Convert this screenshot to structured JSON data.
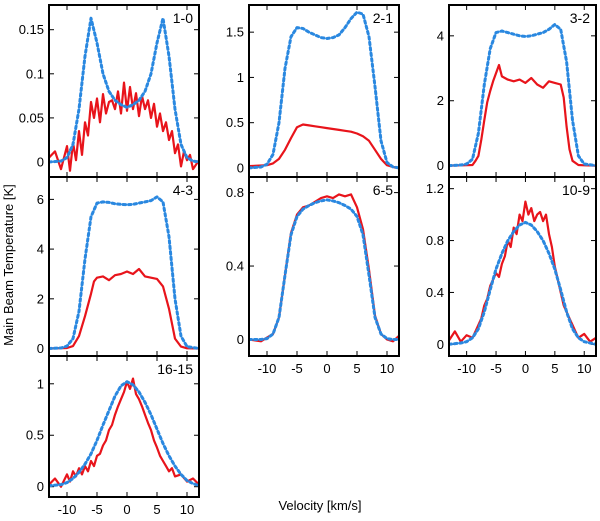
{
  "chart_data": {
    "type": "line",
    "xlabel": "Velocity [km/s]",
    "ylabel": "Main Beam Temperature [K]",
    "xlim": [
      -13,
      12
    ],
    "xticks": [
      -10,
      -5,
      0,
      5,
      10
    ],
    "series_colors": {
      "observed": "#e8141b",
      "model": "#2a88e0"
    },
    "panels": [
      {
        "transition": "1-0",
        "ylim": [
          -0.017,
          0.178
        ],
        "yticks": [
          0,
          0.05,
          0.1,
          0.15
        ],
        "ytick_labels": [
          "0",
          "0.05",
          "0.1",
          "0.15"
        ],
        "observed": {
          "x": [
            -13,
            -12,
            -11,
            -10,
            -9.5,
            -9,
            -8.5,
            -8,
            -7.5,
            -7,
            -6.5,
            -6,
            -5.5,
            -5,
            -4.5,
            -4,
            -3.5,
            -3,
            -2.5,
            -2,
            -1.5,
            -1,
            -0.5,
            0,
            0.5,
            1,
            1.5,
            2,
            2.5,
            3,
            3.5,
            4,
            4.5,
            5,
            5.5,
            6,
            6.5,
            7,
            7.5,
            8,
            8.5,
            9,
            9.5,
            10,
            10.5,
            11,
            12
          ],
          "y": [
            0.005,
            0.012,
            -0.008,
            0.018,
            -0.01,
            0.022,
            0.002,
            0.035,
            0.008,
            0.045,
            0.03,
            0.068,
            0.05,
            0.072,
            0.045,
            0.077,
            0.055,
            0.068,
            0.07,
            0.06,
            0.08,
            0.055,
            0.09,
            0.058,
            0.085,
            0.06,
            0.078,
            0.052,
            0.075,
            0.06,
            0.07,
            0.05,
            0.066,
            0.04,
            0.055,
            0.035,
            0.045,
            0.025,
            0.035,
            0.01,
            0.02,
            -0.005,
            0.012,
            0.002,
            0.008,
            -0.008,
            0.002
          ]
        },
        "model": {
          "x": [
            -13,
            -11,
            -10,
            -9,
            -8,
            -7,
            -6,
            -5,
            -4,
            -3,
            -2,
            -1,
            0,
            1,
            2,
            3,
            4,
            5,
            6,
            7,
            8,
            9,
            10,
            11,
            12
          ],
          "y": [
            0,
            0.001,
            0.005,
            0.02,
            0.06,
            0.12,
            0.163,
            0.135,
            0.1,
            0.08,
            0.07,
            0.065,
            0.062,
            0.065,
            0.07,
            0.08,
            0.1,
            0.135,
            0.163,
            0.12,
            0.06,
            0.02,
            0.005,
            0.001,
            0
          ]
        }
      },
      {
        "transition": "2-1",
        "ylim": [
          -0.1,
          1.8
        ],
        "yticks": [
          0,
          0.5,
          1,
          1.5
        ],
        "ytick_labels": [
          "0",
          "0.5",
          "1",
          "1.5"
        ],
        "observed": {
          "x": [
            -13,
            -10,
            -9,
            -8,
            -7,
            -6,
            -5,
            -4,
            -3,
            -2,
            -1,
            0,
            1,
            2,
            3,
            4,
            5,
            6,
            7,
            8,
            9,
            10,
            11,
            12
          ],
          "y": [
            0.02,
            0.03,
            0.05,
            0.1,
            0.2,
            0.33,
            0.45,
            0.48,
            0.47,
            0.46,
            0.45,
            0.44,
            0.43,
            0.42,
            0.41,
            0.4,
            0.38,
            0.35,
            0.3,
            0.2,
            0.1,
            0.03,
            0.01,
            0
          ]
        },
        "model": {
          "x": [
            -13,
            -11,
            -10,
            -9,
            -8,
            -7,
            -6,
            -5,
            -4,
            -3,
            -2,
            -1,
            0,
            1,
            2,
            3,
            4,
            5,
            6,
            7,
            8,
            9,
            10,
            11,
            12
          ],
          "y": [
            0,
            0.01,
            0.04,
            0.15,
            0.5,
            1.1,
            1.45,
            1.55,
            1.54,
            1.5,
            1.47,
            1.44,
            1.43,
            1.44,
            1.47,
            1.55,
            1.65,
            1.72,
            1.7,
            1.45,
            0.9,
            0.3,
            0.06,
            0.01,
            0
          ]
        }
      },
      {
        "transition": "3-2",
        "ylim": [
          -0.35,
          4.95
        ],
        "yticks": [
          0,
          2,
          4
        ],
        "ytick_labels": [
          "0",
          "2",
          "4"
        ],
        "observed": {
          "x": [
            -13,
            -9,
            -8.5,
            -8,
            -7.5,
            -7,
            -6.5,
            -6,
            -5.5,
            -5,
            -4.5,
            -4,
            -3,
            -2,
            -1,
            0,
            1,
            2,
            3,
            4,
            5,
            6,
            6.5,
            7,
            7.5,
            8,
            9,
            10,
            12
          ],
          "y": [
            0,
            0.02,
            0.15,
            0.3,
            0.8,
            1.4,
            1.95,
            2.3,
            2.6,
            2.85,
            3.1,
            2.75,
            2.65,
            2.6,
            2.65,
            2.55,
            2.7,
            2.5,
            2.4,
            2.6,
            2.55,
            2.5,
            2.1,
            1.2,
            0.5,
            0.15,
            0.02,
            0.01,
            0
          ]
        },
        "model": {
          "x": [
            -13,
            -11,
            -10,
            -9,
            -8,
            -7,
            -6,
            -5,
            -4,
            -3,
            -2,
            -1,
            0,
            1,
            2,
            3,
            4,
            5,
            6,
            7,
            8,
            9,
            10,
            12
          ],
          "y": [
            0,
            0.02,
            0.05,
            0.2,
            1.0,
            2.5,
            3.6,
            4.1,
            4.15,
            4.1,
            4.05,
            4.0,
            3.98,
            4.0,
            4.05,
            4.1,
            4.2,
            4.35,
            4.2,
            3.2,
            1.4,
            0.3,
            0.05,
            0
          ]
        }
      },
      {
        "transition": "4-3",
        "ylim": [
          -0.3,
          6.9
        ],
        "yticks": [
          0,
          2,
          4,
          6
        ],
        "ytick_labels": [
          "0",
          "2",
          "4",
          "6"
        ],
        "observed": {
          "x": [
            -13,
            -10,
            -9,
            -8,
            -7,
            -6,
            -5.5,
            -5,
            -4,
            -3,
            -2,
            -1,
            0,
            1,
            2,
            3,
            4,
            5,
            6,
            7,
            7.5,
            8,
            9,
            10,
            12
          ],
          "y": [
            0,
            0.02,
            0.1,
            0.5,
            1.3,
            2.2,
            2.7,
            2.85,
            2.9,
            2.75,
            2.95,
            3.0,
            3.1,
            3.0,
            3.2,
            2.9,
            2.85,
            2.8,
            2.5,
            1.6,
            1.0,
            0.4,
            0.08,
            0.01,
            0
          ]
        },
        "model": {
          "x": [
            -13,
            -11,
            -10,
            -9,
            -8,
            -7,
            -6,
            -5,
            -4,
            -3,
            -2,
            -1,
            0,
            1,
            2,
            3,
            4,
            5,
            6,
            7,
            8,
            9,
            10,
            12
          ],
          "y": [
            0,
            0.02,
            0.1,
            0.4,
            1.5,
            3.6,
            5.3,
            5.85,
            5.9,
            5.88,
            5.82,
            5.8,
            5.78,
            5.8,
            5.85,
            5.9,
            5.95,
            6.1,
            5.9,
            4.5,
            2.0,
            0.5,
            0.08,
            0
          ]
        }
      },
      {
        "transition": "6-5",
        "ylim": [
          -0.09,
          0.885
        ],
        "yticks": [
          0,
          0.4,
          0.8
        ],
        "ytick_labels": [
          "0",
          "0.4",
          "0.8"
        ],
        "observed": {
          "x": [
            -13,
            -11,
            -10,
            -9,
            -8,
            -7,
            -6,
            -5,
            -4,
            -3,
            -2,
            -1,
            0,
            1,
            2,
            3,
            4,
            5,
            6,
            7,
            8,
            9,
            10,
            11,
            12
          ],
          "y": [
            0,
            -0.01,
            0.01,
            0.03,
            0.12,
            0.35,
            0.58,
            0.68,
            0.72,
            0.73,
            0.75,
            0.77,
            0.78,
            0.77,
            0.79,
            0.78,
            0.79,
            0.72,
            0.6,
            0.38,
            0.13,
            0.03,
            0.0,
            -0.01,
            0.02
          ]
        },
        "model": {
          "x": [
            -13,
            -11,
            -10,
            -9,
            -8,
            -7,
            -6,
            -5,
            -4,
            -3,
            -2,
            -1,
            0,
            1,
            2,
            3,
            4,
            5,
            6,
            7,
            8,
            9,
            10,
            11,
            12
          ],
          "y": [
            0,
            0.0,
            0.005,
            0.03,
            0.12,
            0.35,
            0.57,
            0.67,
            0.71,
            0.73,
            0.745,
            0.755,
            0.76,
            0.755,
            0.745,
            0.73,
            0.71,
            0.67,
            0.57,
            0.35,
            0.12,
            0.03,
            0.005,
            0.0,
            0
          ]
        }
      },
      {
        "transition": "10-9",
        "ylim": [
          -0.09,
          1.29
        ],
        "yticks": [
          0,
          0.4,
          0.8,
          1.2
        ],
        "ytick_labels": [
          "0",
          "0.4",
          "0.8",
          "1.2"
        ],
        "observed": {
          "x": [
            -13,
            -12,
            -11,
            -10,
            -9,
            -8.5,
            -8,
            -7.5,
            -7,
            -6.5,
            -6,
            -5.5,
            -5,
            -4.5,
            -4,
            -3.5,
            -3,
            -2.5,
            -2,
            -1.5,
            -1,
            -0.5,
            0,
            0.5,
            1,
            1.5,
            2,
            2.5,
            3,
            3.5,
            4,
            4.5,
            5,
            5.5,
            6,
            6.5,
            7,
            7.5,
            8,
            8.5,
            9,
            10,
            11,
            12
          ],
          "y": [
            0.03,
            0.1,
            0.02,
            0.07,
            0.05,
            0.1,
            0.15,
            0.2,
            0.3,
            0.35,
            0.45,
            0.5,
            0.55,
            0.52,
            0.62,
            0.68,
            0.8,
            0.75,
            0.9,
            0.85,
            1.0,
            0.95,
            1.1,
            1.0,
            1.05,
            0.95,
            1.0,
            1.02,
            0.95,
            1.0,
            0.85,
            0.75,
            0.6,
            0.5,
            0.4,
            0.3,
            0.25,
            0.2,
            0.15,
            0.1,
            0.05,
            0.08,
            0.02,
            0.05
          ]
        },
        "model": {
          "x": [
            -13,
            -11,
            -10,
            -9,
            -8,
            -7,
            -6,
            -5,
            -4,
            -3,
            -2,
            -1,
            0,
            1,
            2,
            3,
            4,
            5,
            6,
            7,
            8,
            9,
            10,
            11,
            12
          ],
          "y": [
            0,
            0.01,
            0.02,
            0.05,
            0.12,
            0.25,
            0.42,
            0.58,
            0.7,
            0.8,
            0.87,
            0.92,
            0.94,
            0.92,
            0.87,
            0.8,
            0.7,
            0.58,
            0.42,
            0.25,
            0.12,
            0.05,
            0.02,
            0.01,
            0
          ]
        }
      },
      {
        "transition": "16-15",
        "ylim": [
          -0.1,
          1.27
        ],
        "yticks": [
          0,
          0.5,
          1
        ],
        "ytick_labels": [
          "0",
          "0.5",
          "1"
        ],
        "observed": {
          "x": [
            -13,
            -12,
            -11,
            -10,
            -9.5,
            -9,
            -8.5,
            -8,
            -7.5,
            -7,
            -6.5,
            -6,
            -5.5,
            -5,
            -4.5,
            -4,
            -3.5,
            -3,
            -2.5,
            -2,
            -1.5,
            -1,
            -0.5,
            0,
            0.5,
            1,
            1.5,
            2,
            2.5,
            3,
            3.5,
            4,
            4.5,
            5,
            5.5,
            6,
            6.5,
            7,
            7.5,
            8,
            9,
            10,
            11,
            12
          ],
          "y": [
            0.02,
            0.08,
            0.0,
            0.12,
            0.05,
            0.15,
            0.1,
            0.18,
            0.12,
            0.2,
            0.15,
            0.25,
            0.2,
            0.3,
            0.32,
            0.4,
            0.45,
            0.55,
            0.6,
            0.7,
            0.78,
            0.85,
            0.92,
            1.02,
            0.95,
            1.05,
            0.9,
            0.85,
            0.78,
            0.7,
            0.62,
            0.55,
            0.45,
            0.38,
            0.3,
            0.25,
            0.2,
            0.15,
            0.18,
            0.1,
            0.12,
            0.05,
            0.08,
            0.02
          ]
        },
        "model": {
          "x": [
            -13,
            -11,
            -10,
            -9,
            -8,
            -7,
            -6,
            -5,
            -4,
            -3,
            -2,
            -1,
            0,
            1,
            2,
            3,
            4,
            5,
            6,
            7,
            8,
            9,
            10,
            11,
            12
          ],
          "y": [
            0.01,
            0.02,
            0.04,
            0.08,
            0.14,
            0.22,
            0.32,
            0.45,
            0.6,
            0.74,
            0.88,
            0.98,
            1.02,
            0.99,
            0.92,
            0.82,
            0.7,
            0.56,
            0.42,
            0.3,
            0.2,
            0.12,
            0.06,
            0.03,
            0.01
          ]
        }
      }
    ]
  }
}
